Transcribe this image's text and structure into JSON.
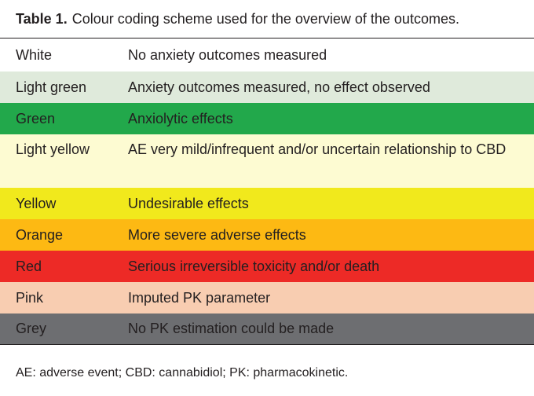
{
  "title": {
    "label": "Table 1.",
    "text": "Colour coding scheme used for the overview of the outcomes."
  },
  "table": {
    "rows": [
      [
        "White",
        "No anxiety outcomes measured"
      ],
      [
        "Light green",
        "Anxiety outcomes measured, no effect observed"
      ],
      [
        "Green",
        "Anxiolytic effects"
      ],
      [
        "Light yellow",
        "AE very mild/infrequent and/or uncertain relationship to CBD"
      ],
      [
        "Yellow",
        "Undesirable effects"
      ],
      [
        "Orange",
        "More severe adverse effects"
      ],
      [
        "Red",
        "Serious irreversible toxicity and/or death"
      ],
      [
        "Pink",
        "Imputed PK parameter"
      ],
      [
        "Grey",
        "No PK estimation could be made"
      ]
    ]
  },
  "footnote": "AE: adverse event; CBD: cannabidiol; PK: pharmacokinetic."
}
